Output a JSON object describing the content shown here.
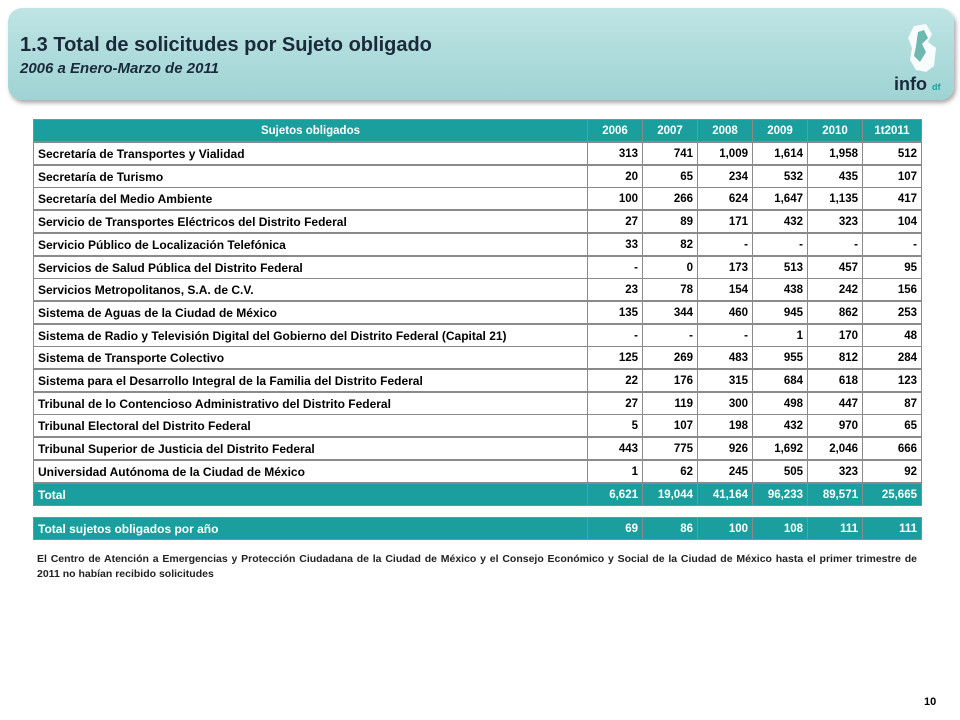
{
  "header": {
    "title": "1.3 Total de solicitudes por Sujeto obligado",
    "subtitle": "2006 a Enero-Marzo de 2011",
    "logo": "info",
    "logo_suffix": "df"
  },
  "table": {
    "columns": [
      "Sujetos obligados",
      "2006",
      "2007",
      "2008",
      "2009",
      "2010",
      "1t2011"
    ],
    "rows": [
      [
        "Secretaría de Transportes y Vialidad",
        "313",
        "741",
        "1,009",
        "1,614",
        "1,958",
        "512"
      ],
      [
        "Secretaría de Turismo",
        "20",
        "65",
        "234",
        "532",
        "435",
        "107"
      ],
      [
        "Secretaría del Medio Ambiente",
        "100",
        "266",
        "624",
        "1,647",
        "1,135",
        "417"
      ],
      [
        "Servicio de Transportes Eléctricos del Distrito Federal",
        "27",
        "89",
        "171",
        "432",
        "323",
        "104"
      ],
      [
        "Servicio Público de Localización Telefónica",
        "33",
        "82",
        "-",
        "-",
        "-",
        "-"
      ],
      [
        "Servicios de Salud Pública del Distrito Federal",
        "-",
        "0",
        "173",
        "513",
        "457",
        "95"
      ],
      [
        "Servicios Metropolitanos, S.A. de C.V.",
        "23",
        "78",
        "154",
        "438",
        "242",
        "156"
      ],
      [
        "Sistema de Aguas de la Ciudad de México",
        "135",
        "344",
        "460",
        "945",
        "862",
        "253"
      ],
      [
        "Sistema de Radio y Televisión Digital del Gobierno del Distrito Federal (Capital 21)",
        "-",
        "-",
        "-",
        "1",
        "170",
        "48"
      ],
      [
        "Sistema de Transporte Colectivo",
        "125",
        "269",
        "483",
        "955",
        "812",
        "284"
      ],
      [
        "Sistema para el Desarrollo Integral de la Familia del Distrito Federal",
        "22",
        "176",
        "315",
        "684",
        "618",
        "123"
      ],
      [
        "Tribunal de lo Contencioso Administrativo del Distrito Federal",
        "27",
        "119",
        "300",
        "498",
        "447",
        "87"
      ],
      [
        "Tribunal Electoral del Distrito Federal",
        "5",
        "107",
        "198",
        "432",
        "970",
        "65"
      ],
      [
        "Tribunal Superior de Justicia del Distrito Federal",
        "443",
        "775",
        "926",
        "1,692",
        "2,046",
        "666"
      ],
      [
        "Universidad Autónoma de la Ciudad de México",
        "1",
        "62",
        "245",
        "505",
        "323",
        "92"
      ]
    ],
    "total": [
      "Total",
      "6,621",
      "19,044",
      "41,164",
      "96,233",
      "89,571",
      "25,665"
    ],
    "per_year": [
      "Total sujetos obligados por año",
      "69",
      "86",
      "100",
      "108",
      "111",
      "111"
    ]
  },
  "note": "El Centro de Atención a Emergencias y Protección Ciudadana de la Ciudad de México y el Consejo Económico y Social de la Ciudad de México hasta el primer trimestre de 2011 no habían recibido solicitudes",
  "page_number": "10"
}
